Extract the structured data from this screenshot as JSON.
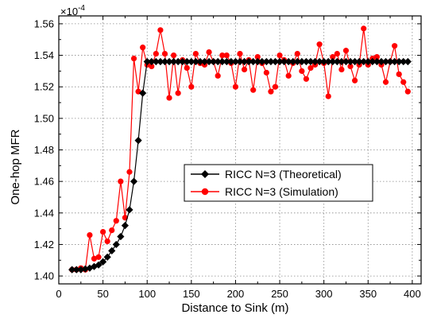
{
  "chart_data": {
    "type": "line",
    "xlabel": "Distance to Sink (m)",
    "ylabel": "One-hop MFR",
    "y_multiplier": "×10",
    "y_exponent": "-4",
    "xlim": [
      0,
      410
    ],
    "ylim": [
      1.395,
      1.565
    ],
    "x_ticks": [
      0,
      50,
      100,
      150,
      200,
      250,
      300,
      350,
      400
    ],
    "y_ticks": [
      1.4,
      1.42,
      1.44,
      1.46,
      1.48,
      1.5,
      1.52,
      1.54,
      1.56
    ],
    "grid": true,
    "legend_position": "center-right",
    "series": [
      {
        "name": "RICC N=3 (Theoretical)",
        "color": "#000000",
        "marker": "diamond",
        "x": [
          15,
          20,
          25,
          30,
          35,
          40,
          45,
          50,
          55,
          60,
          65,
          70,
          75,
          80,
          85,
          90,
          95,
          100,
          105,
          110,
          115,
          120,
          125,
          130,
          135,
          140,
          145,
          150,
          155,
          160,
          165,
          170,
          175,
          180,
          185,
          190,
          195,
          200,
          205,
          210,
          215,
          220,
          225,
          230,
          235,
          240,
          245,
          250,
          255,
          260,
          265,
          270,
          275,
          280,
          285,
          290,
          295,
          300,
          305,
          310,
          315,
          320,
          325,
          330,
          335,
          340,
          345,
          350,
          355,
          360,
          365,
          370,
          375,
          380,
          385,
          390,
          395
        ],
        "y": [
          1.404,
          1.404,
          1.404,
          1.4045,
          1.405,
          1.406,
          1.407,
          1.409,
          1.412,
          1.416,
          1.42,
          1.425,
          1.432,
          1.442,
          1.46,
          1.486,
          1.516,
          1.536,
          1.536,
          1.536,
          1.536,
          1.536,
          1.536,
          1.536,
          1.536,
          1.536,
          1.536,
          1.536,
          1.536,
          1.536,
          1.536,
          1.536,
          1.536,
          1.536,
          1.536,
          1.536,
          1.536,
          1.536,
          1.536,
          1.536,
          1.536,
          1.536,
          1.536,
          1.536,
          1.536,
          1.536,
          1.536,
          1.536,
          1.536,
          1.536,
          1.536,
          1.536,
          1.536,
          1.536,
          1.536,
          1.536,
          1.536,
          1.536,
          1.536,
          1.536,
          1.536,
          1.536,
          1.536,
          1.536,
          1.536,
          1.536,
          1.536,
          1.536,
          1.536,
          1.536,
          1.536,
          1.536,
          1.536,
          1.536,
          1.536,
          1.536,
          1.536
        ]
      },
      {
        "name": "RICC N=3 (Simulation)",
        "color": "#ff0000",
        "marker": "circle",
        "x": [
          15,
          20,
          25,
          30,
          35,
          40,
          45,
          50,
          55,
          60,
          65,
          70,
          75,
          80,
          85,
          90,
          95,
          100,
          105,
          110,
          115,
          120,
          125,
          130,
          135,
          140,
          145,
          150,
          155,
          160,
          165,
          170,
          175,
          180,
          185,
          190,
          195,
          200,
          205,
          210,
          215,
          220,
          225,
          230,
          235,
          240,
          245,
          250,
          255,
          260,
          265,
          270,
          275,
          280,
          285,
          290,
          295,
          300,
          305,
          310,
          315,
          320,
          325,
          330,
          335,
          340,
          345,
          350,
          355,
          360,
          365,
          370,
          375,
          380,
          385,
          390,
          395
        ],
        "y": [
          1.404,
          1.404,
          1.405,
          1.404,
          1.426,
          1.411,
          1.412,
          1.428,
          1.422,
          1.429,
          1.435,
          1.46,
          1.437,
          1.466,
          1.538,
          1.517,
          1.545,
          1.534,
          1.533,
          1.541,
          1.556,
          1.541,
          1.513,
          1.54,
          1.516,
          1.537,
          1.532,
          1.52,
          1.541,
          1.535,
          1.534,
          1.542,
          1.536,
          1.527,
          1.54,
          1.54,
          1.535,
          1.52,
          1.541,
          1.531,
          1.537,
          1.518,
          1.539,
          1.535,
          1.529,
          1.517,
          1.52,
          1.54,
          1.537,
          1.527,
          1.535,
          1.541,
          1.53,
          1.525,
          1.532,
          1.534,
          1.547,
          1.535,
          1.514,
          1.539,
          1.541,
          1.531,
          1.543,
          1.533,
          1.524,
          1.534,
          1.557,
          1.534,
          1.538,
          1.539,
          1.534,
          1.523,
          1.536,
          1.546,
          1.528,
          1.523,
          1.517
        ]
      }
    ]
  }
}
